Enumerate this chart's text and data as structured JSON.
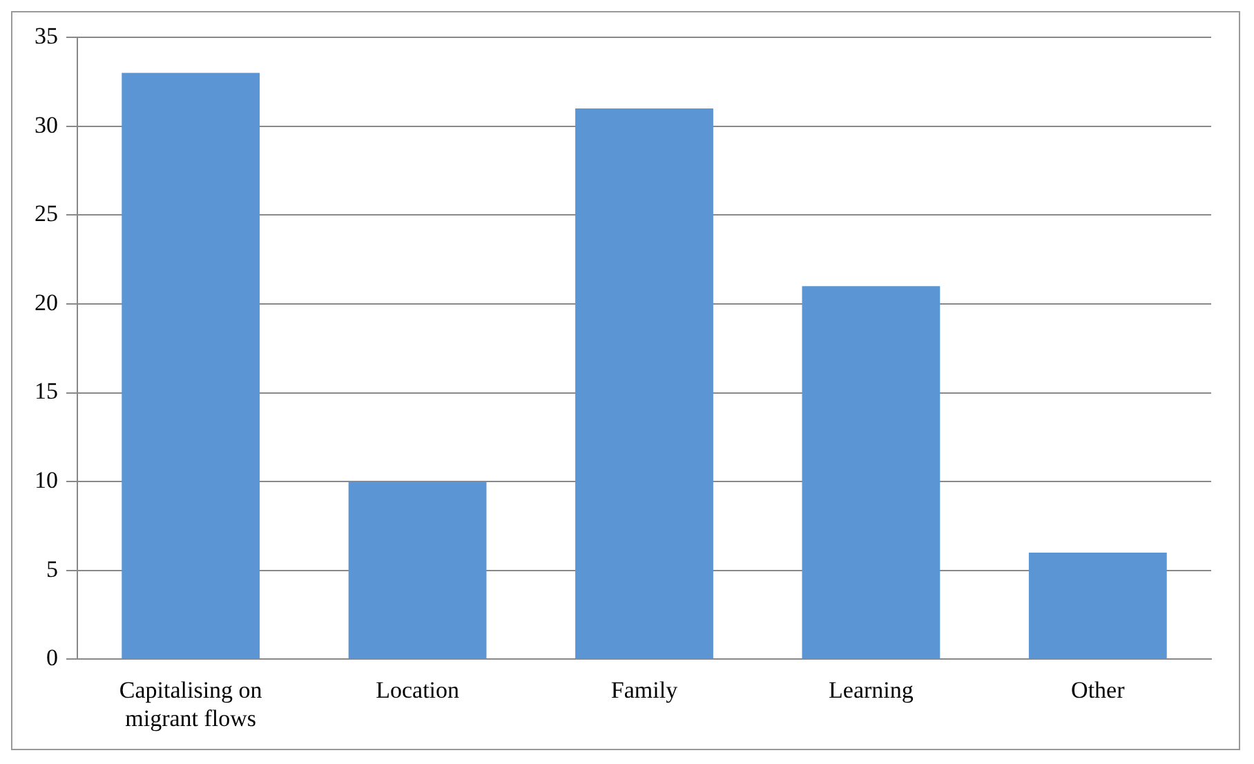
{
  "chart_data": {
    "type": "bar",
    "categories": [
      "Capitalising on migrant flows",
      "Location",
      "Family",
      "Learning",
      "Other"
    ],
    "values": [
      33,
      10,
      31,
      21,
      6
    ],
    "color": "#5b95d3",
    "ylim": [
      0,
      35
    ],
    "yticks": [
      0,
      5,
      10,
      15,
      20,
      25,
      30,
      35
    ],
    "grid": "y",
    "legend": false
  }
}
